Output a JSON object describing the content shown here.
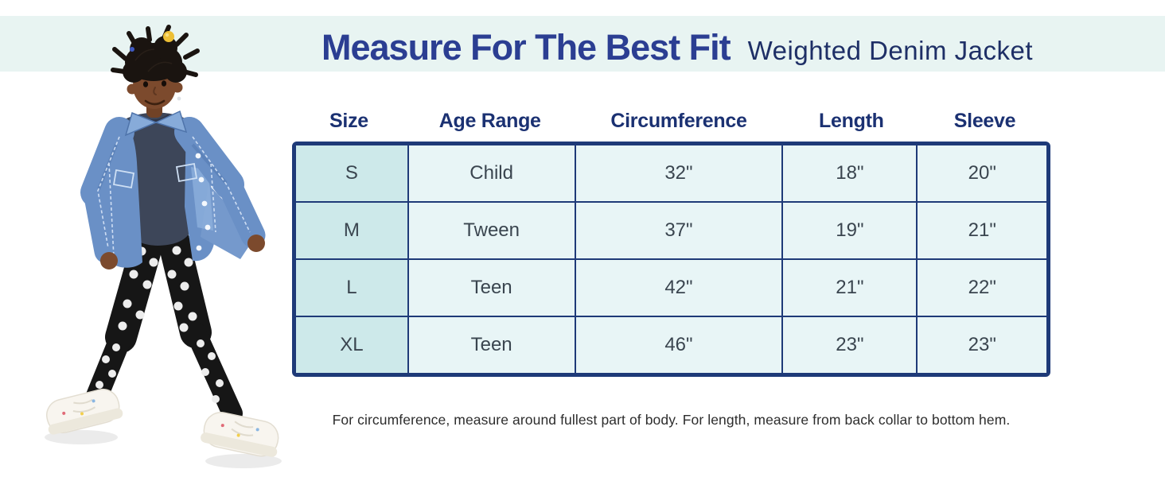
{
  "header": {
    "title": "Measure For The Best Fit",
    "subtitle": "Weighted Denim Jacket"
  },
  "footnote": "For circumference, measure around fullest part of body. For length, measure from back collar to bottom hem.",
  "photo": {
    "description": "Child model wearing an open blue denim jacket over a navy top, black polka-dot leggings and white sneakers, yellow hair bobble"
  },
  "colors": {
    "band_bg": "#e8f4f2",
    "title_text": "#2b3e92",
    "subtitle_text": "#1e2f66",
    "column_header_text": "#1b3172",
    "table_border": "#1e3a78",
    "size_column_bg": "#cde9ea",
    "cell_bg": "#e8f5f6",
    "cell_text": "#3a454f",
    "footnote_text": "#2d2d2d"
  },
  "chart_data": {
    "type": "table",
    "title": "Measure For The Best Fit — Weighted Denim Jacket",
    "columns": [
      "Size",
      "Age Range",
      "Circumference",
      "Length",
      "Sleeve"
    ],
    "rows": [
      [
        "S",
        "Child",
        "32\"",
        "18\"",
        "20\""
      ],
      [
        "M",
        "Tween",
        "37\"",
        "19\"",
        "21\""
      ],
      [
        "L",
        "Teen",
        "42\"",
        "21\"",
        "22\""
      ],
      [
        "XL",
        "Teen",
        "46\"",
        "23\"",
        "23\""
      ]
    ],
    "notes": "For circumference, measure around fullest part of body. For length, measure from back collar to bottom hem."
  }
}
